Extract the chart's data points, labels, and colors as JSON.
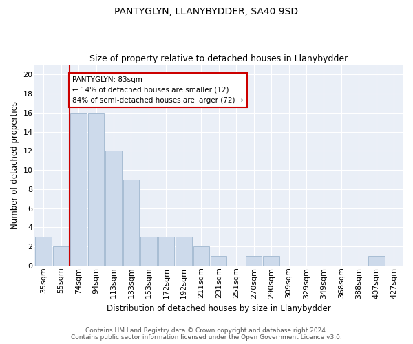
{
  "title": "PANTYGLYN, LLANYBYDDER, SA40 9SD",
  "subtitle": "Size of property relative to detached houses in Llanybydder",
  "xlabel": "Distribution of detached houses by size in Llanybydder",
  "ylabel": "Number of detached properties",
  "categories": [
    "35sqm",
    "55sqm",
    "74sqm",
    "94sqm",
    "113sqm",
    "133sqm",
    "153sqm",
    "172sqm",
    "192sqm",
    "211sqm",
    "231sqm",
    "251sqm",
    "270sqm",
    "290sqm",
    "309sqm",
    "329sqm",
    "349sqm",
    "368sqm",
    "388sqm",
    "407sqm",
    "427sqm"
  ],
  "values": [
    3,
    2,
    16,
    16,
    12,
    9,
    3,
    3,
    3,
    2,
    1,
    0,
    1,
    1,
    0,
    0,
    0,
    0,
    0,
    1,
    0
  ],
  "bar_color": "#cddaeb",
  "bar_edge_color": "#a8bdd4",
  "vline_x_index": 2,
  "vline_color": "#cc0000",
  "annotation_text": "PANTYGLYN: 83sqm\n← 14% of detached houses are smaller (12)\n84% of semi-detached houses are larger (72) →",
  "annotation_box_color": "#ffffff",
  "annotation_box_edge": "#cc0000",
  "ylim": [
    0,
    21
  ],
  "yticks": [
    0,
    2,
    4,
    6,
    8,
    10,
    12,
    14,
    16,
    18,
    20
  ],
  "footer_line1": "Contains HM Land Registry data © Crown copyright and database right 2024.",
  "footer_line2": "Contains public sector information licensed under the Open Government Licence v3.0.",
  "plot_bg_color": "#eaeff7",
  "title_fontsize": 10,
  "subtitle_fontsize": 9,
  "xlabel_fontsize": 8.5,
  "ylabel_fontsize": 8.5,
  "tick_fontsize": 8,
  "annotation_fontsize": 7.5,
  "footer_fontsize": 6.5
}
